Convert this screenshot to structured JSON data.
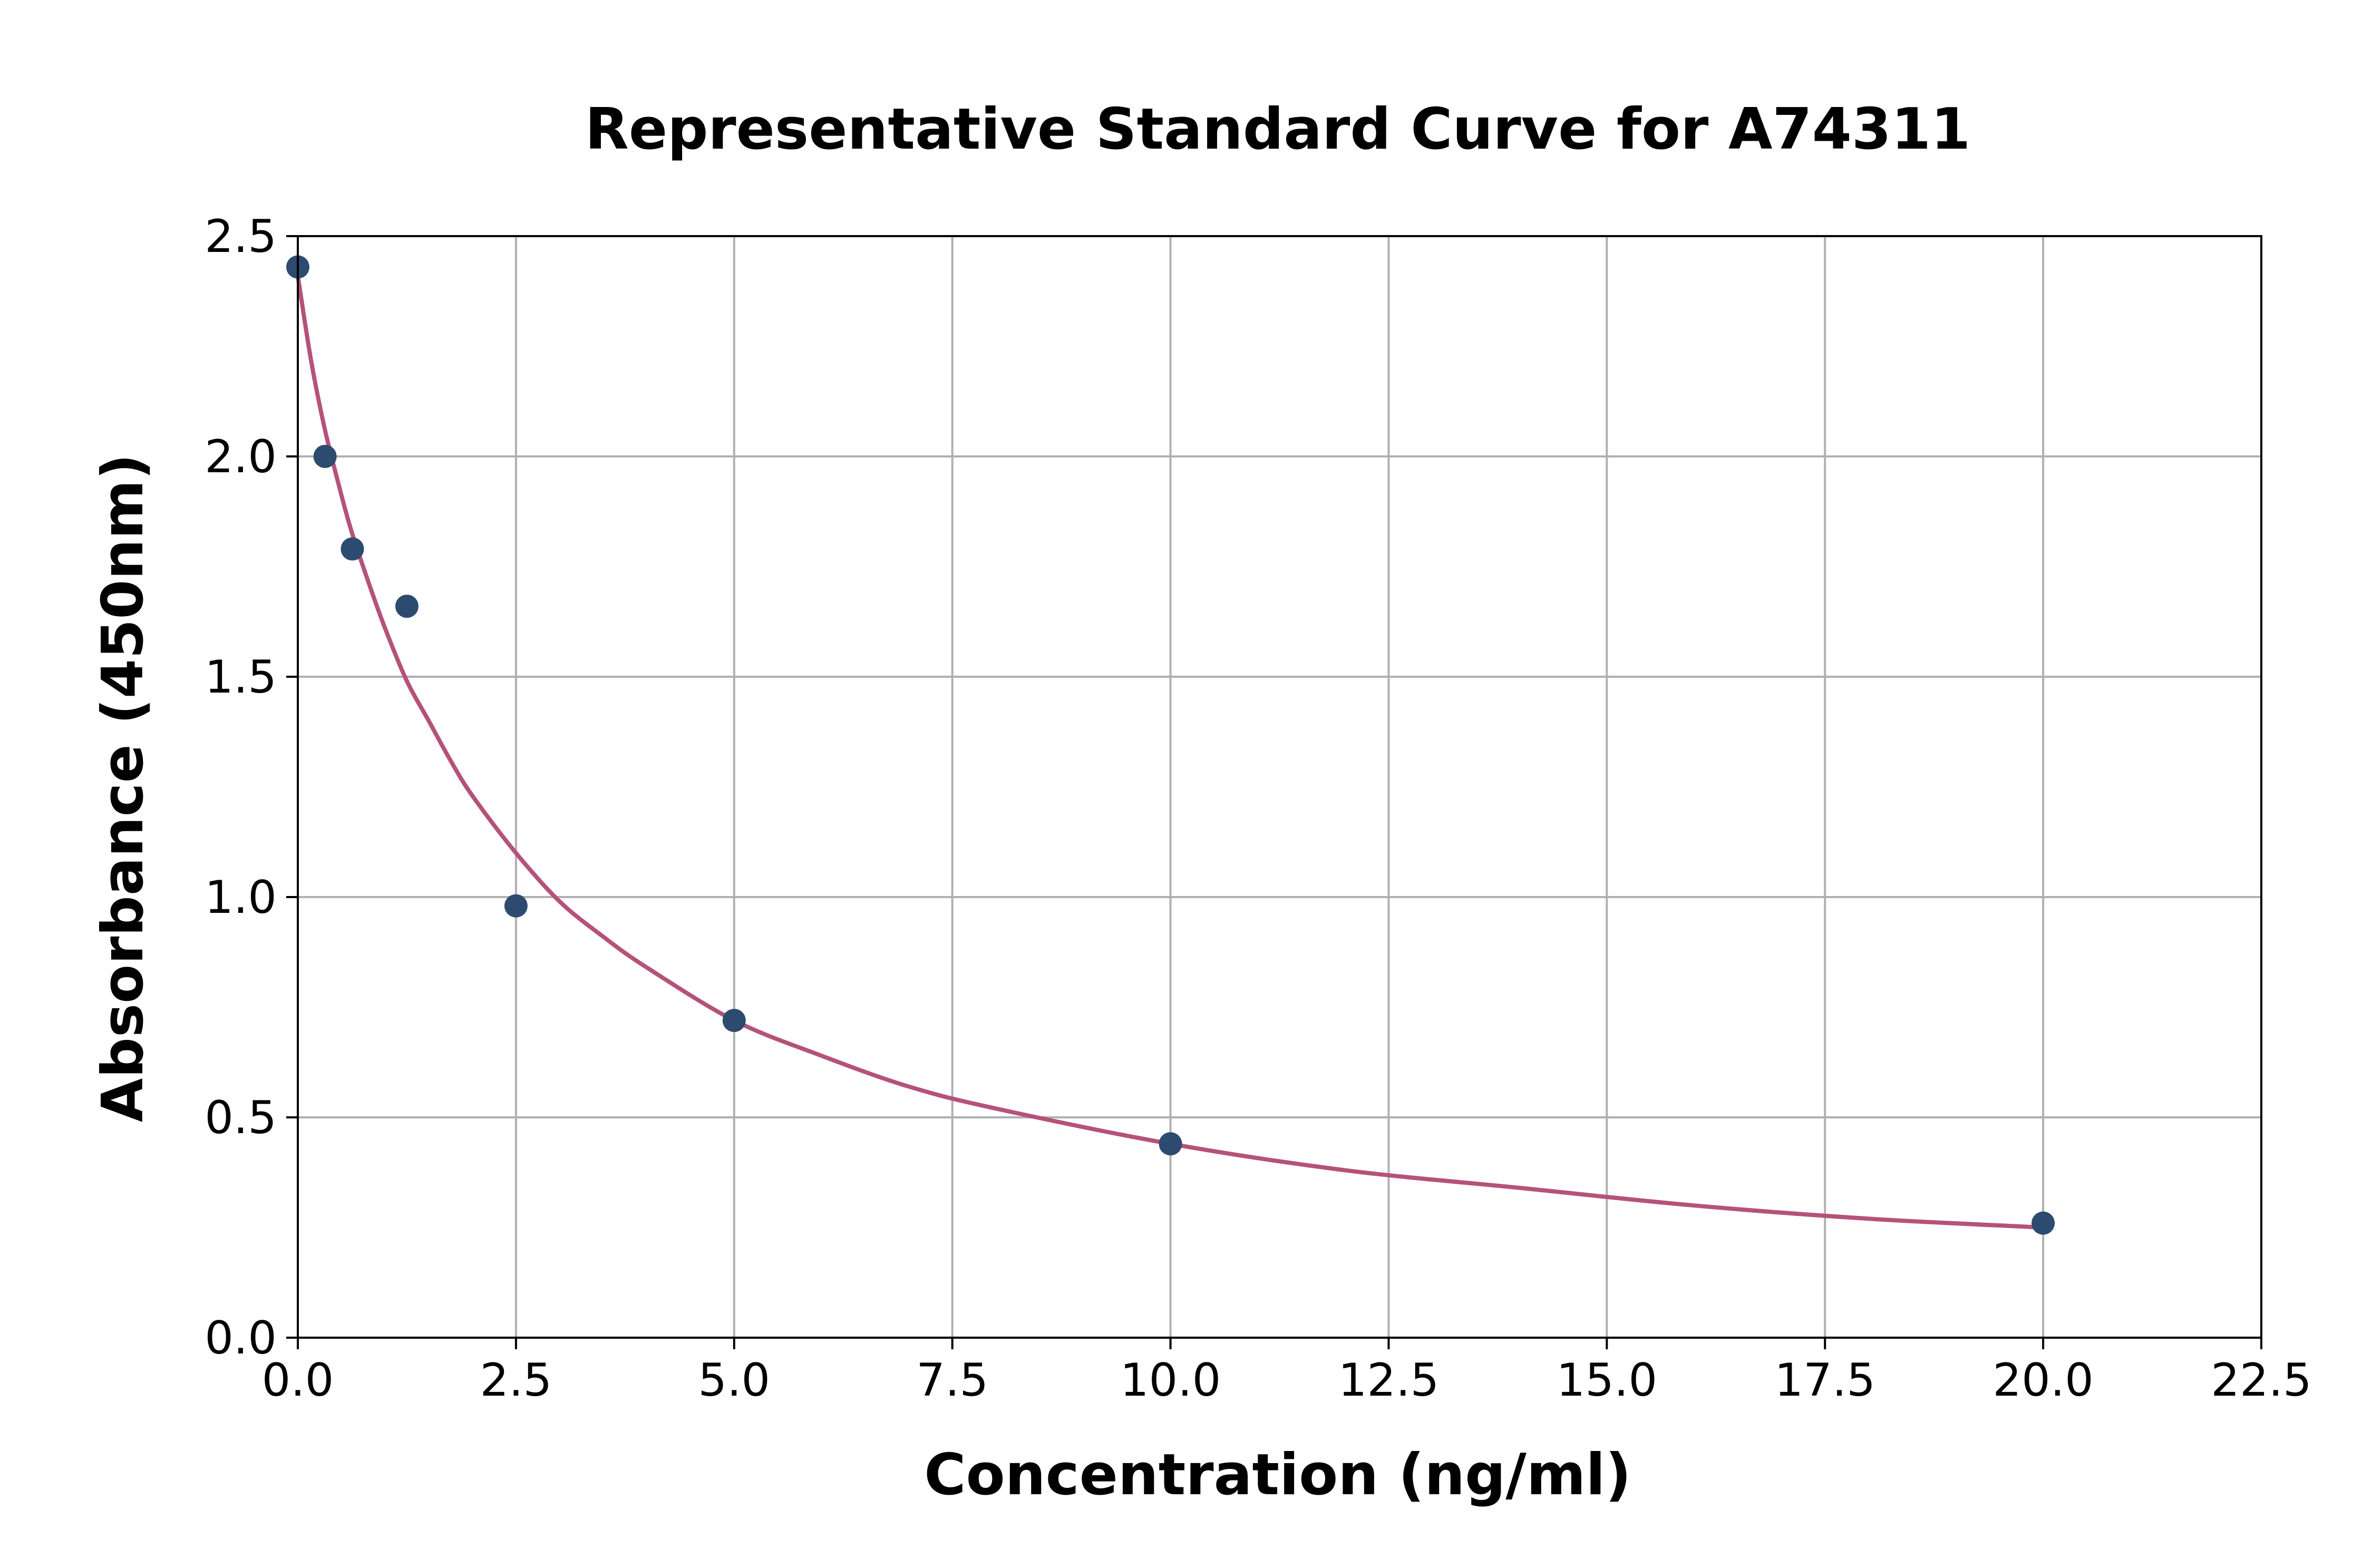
{
  "chart_data": {
    "type": "scatter",
    "title": "Representative Standard Curve for A74311",
    "xlabel": "Concentration (ng/ml)",
    "ylabel": "Absorbance (450nm)",
    "xlim": [
      0,
      22.5
    ],
    "ylim": [
      0,
      2.5
    ],
    "x_ticks": [
      "0.0",
      "2.5",
      "5.0",
      "7.5",
      "10.0",
      "12.5",
      "15.0",
      "17.5",
      "20.0",
      "22.5"
    ],
    "y_ticks": [
      "0.0",
      "0.5",
      "1.0",
      "1.5",
      "2.0",
      "2.5"
    ],
    "grid": true,
    "legend": "none",
    "series": [
      {
        "kind": "points",
        "color": "#2d4b6e",
        "x": [
          0,
          0.312,
          0.625,
          1.25,
          2.5,
          5,
          10,
          20
        ],
        "y": [
          2.43,
          2.0,
          1.79,
          1.66,
          0.98,
          0.72,
          0.44,
          0.26
        ]
      },
      {
        "kind": "fitted-curve",
        "color": "#b5527a",
        "x": [
          0,
          0.15,
          0.3,
          0.45,
          0.6,
          0.8,
          1.0,
          1.25,
          1.5,
          1.75,
          2.0,
          2.5,
          3.0,
          3.5,
          4.0,
          5.0,
          6.0,
          7.0,
          8.0,
          10.0,
          12.0,
          14.0,
          16.0,
          18.0,
          20.0
        ],
        "y": [
          2.41,
          2.22,
          2.07,
          1.95,
          1.84,
          1.72,
          1.61,
          1.49,
          1.4,
          1.31,
          1.23,
          1.1,
          0.99,
          0.91,
          0.84,
          0.72,
          0.64,
          0.57,
          0.52,
          0.44,
          0.38,
          0.34,
          0.3,
          0.27,
          0.25
        ]
      }
    ]
  }
}
